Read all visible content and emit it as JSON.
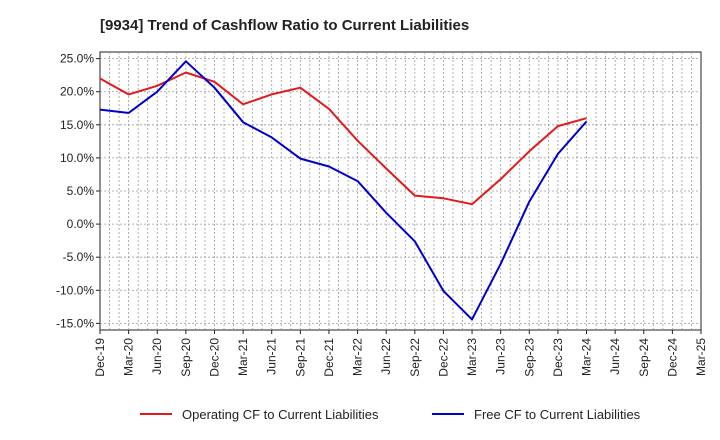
{
  "chart_data": {
    "type": "line",
    "title": "[9934]  Trend of Cashflow Ratio to Current Liabilities",
    "xlabel": "",
    "ylabel": "",
    "x": [
      "Dec-19",
      "Mar-20",
      "Jun-20",
      "Sep-20",
      "Dec-20",
      "Mar-21",
      "Jun-21",
      "Sep-21",
      "Dec-21",
      "Mar-22",
      "Jun-22",
      "Sep-22",
      "Dec-22",
      "Mar-23",
      "Jun-23",
      "Sep-23",
      "Dec-23",
      "Mar-24",
      "Jun-24",
      "Sep-24",
      "Dec-24",
      "Mar-25"
    ],
    "y_ticks": [
      25.0,
      20.0,
      15.0,
      10.0,
      5.0,
      0.0,
      -5.0,
      -10.0,
      -15.0
    ],
    "y_tick_labels": [
      "25.0%",
      "20.0%",
      "15.0%",
      "10.0%",
      "5.0%",
      "0.0%",
      "-5.0%",
      "-10.0%",
      "-15.0%"
    ],
    "ylim": [
      -16.0,
      26.0
    ],
    "grid": true,
    "legend_position": "bottom",
    "series": [
      {
        "name": "Operating CF to Current Liabilities",
        "color": "#e31a1c",
        "values": [
          22.0,
          19.6,
          20.9,
          22.9,
          21.5,
          18.1,
          19.6,
          20.6,
          17.4,
          12.6,
          8.4,
          4.3,
          3.9,
          3.0,
          6.8,
          11.0,
          14.8,
          16.0,
          null,
          null,
          null,
          null
        ]
      },
      {
        "name": "Free CF to Current Liabilities",
        "color": "#0000cc",
        "values": [
          17.3,
          16.8,
          20.0,
          24.6,
          20.6,
          15.4,
          13.1,
          9.9,
          8.7,
          6.5,
          1.7,
          -2.6,
          -10.1,
          -14.4,
          -6.0,
          3.4,
          10.6,
          15.5,
          null,
          null,
          null,
          null
        ]
      }
    ]
  }
}
